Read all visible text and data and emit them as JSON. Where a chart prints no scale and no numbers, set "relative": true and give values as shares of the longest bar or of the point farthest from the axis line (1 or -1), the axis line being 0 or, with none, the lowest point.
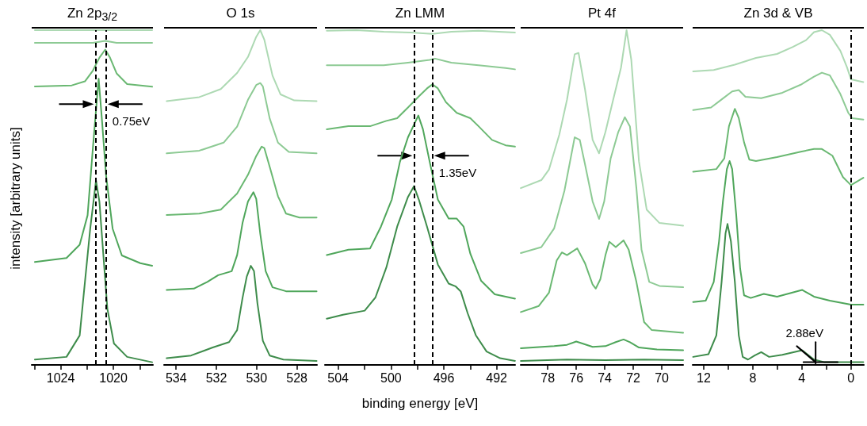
{
  "chart_data": [
    {
      "type": "line",
      "title": "Zn 2p$_{3/2}$",
      "ylabel": "intensity [arbitrary units]",
      "relative": true,
      "xlim": [
        1026.2,
        1017
      ],
      "xticks": [
        {
          "value": 1026,
          "label": null
        },
        1024,
        {
          "value": 1022,
          "label": null
        },
        1020,
        {
          "value": 1018,
          "label": null
        }
      ],
      "ref_lines": [
        {
          "axis": "x",
          "value": 1021.36,
          "line_style": "dashed"
        },
        {
          "axis": "x",
          "value": 1020.56,
          "line_style": "dashed"
        }
      ],
      "annotations": [
        {
          "text": "0.75eV",
          "x": 1020.56,
          "y": 0.779
        }
      ],
      "series": [
        {
          "color": "#3e8c4b",
          "x": [
            1025.96,
            1023.56,
            1022.56,
            1022.16,
            1021.76,
            1021.32,
            1021.06,
            1020.76,
            1020.46,
            1019.96,
            1018.96,
            1017.06
          ],
          "values": [
            0.016,
            0.024,
            0.088,
            0.248,
            0.407,
            0.551,
            0.487,
            0.327,
            0.168,
            0.064,
            0.024,
            0.008
          ]
        },
        {
          "color": "#4fa65b",
          "x": [
            1025.96,
            1023.56,
            1022.56,
            1021.96,
            1021.56,
            1021.12,
            1020.86,
            1020.56,
            1020.06,
            1019.36,
            1017.96,
            1017.06
          ],
          "values": [
            0.3075,
            0.3195,
            0.359,
            0.447,
            0.647,
            0.855,
            0.727,
            0.567,
            0.407,
            0.327,
            0.304,
            0.296
          ]
        },
        {
          "color": "#6ab872",
          "x": [
            1025.96,
            1023.16,
            1022.16,
            1021.56,
            1021.06,
            1020.62,
            1020.26,
            1019.76,
            1018.96,
            1017.06
          ],
          "values": [
            0.832,
            0.835,
            0.847,
            0.879,
            0.918,
            0.942,
            0.918,
            0.871,
            0.839,
            0.831
          ]
        },
        {
          "color": "#8dca94",
          "x": [
            1025.96,
            1021.56,
            1020.62,
            1019.76,
            1017.06
          ],
          "values": [
            0.962,
            0.962,
            0.968,
            0.962,
            0.962
          ]
        },
        {
          "color": "#add9b3",
          "x": [
            1025.96,
            1017.06
          ],
          "values": [
            1.0,
            1.0
          ]
        }
      ]
    },
    {
      "type": "line",
      "title": "O 1s",
      "relative": true,
      "xlim": [
        534.6,
        527
      ],
      "xticks": [
        534,
        532,
        530,
        528
      ],
      "series": [
        {
          "color": "#3e8c4b",
          "x": [
            534.47,
            533.26,
            532.18,
            531.37,
            530.97,
            530.7,
            530.49,
            530.29,
            530.13,
            529.96,
            529.69,
            529.35,
            528.67,
            527.02
          ],
          "values": [
            0.02,
            0.028,
            0.052,
            0.068,
            0.104,
            0.2,
            0.264,
            0.296,
            0.28,
            0.184,
            0.072,
            0.028,
            0.016,
            0.012
          ]
        },
        {
          "color": "#4fa65b",
          "x": [
            534.47,
            533.12,
            532.45,
            531.91,
            531.24,
            530.97,
            530.7,
            530.43,
            530.16,
            530.02,
            529.82,
            529.55,
            529.21,
            528.54,
            527.02
          ],
          "values": [
            0.224,
            0.228,
            0.248,
            0.268,
            0.28,
            0.328,
            0.424,
            0.488,
            0.516,
            0.496,
            0.392,
            0.28,
            0.232,
            0.22,
            0.22
          ]
        },
        {
          "color": "#6ab872",
          "x": [
            534.47,
            532.85,
            531.78,
            530.97,
            530.43,
            530.02,
            529.75,
            529.62,
            529.35,
            528.94,
            528.54,
            527.87,
            527.02
          ],
          "values": [
            0.448,
            0.452,
            0.464,
            0.512,
            0.568,
            0.624,
            0.652,
            0.648,
            0.592,
            0.504,
            0.452,
            0.44,
            0.44
          ]
        },
        {
          "color": "#8dca94",
          "x": [
            534.47,
            532.85,
            531.64,
            530.97,
            530.43,
            530.02,
            529.82,
            529.69,
            529.35,
            528.94,
            528.4,
            527.02
          ],
          "values": [
            0.632,
            0.64,
            0.664,
            0.712,
            0.792,
            0.836,
            0.842,
            0.832,
            0.736,
            0.664,
            0.636,
            0.632
          ]
        },
        {
          "color": "#add9b3",
          "x": [
            534.47,
            532.85,
            531.78,
            530.97,
            530.43,
            530.02,
            529.82,
            529.62,
            529.21,
            528.81,
            528.13,
            527.02
          ],
          "values": [
            0.788,
            0.8,
            0.824,
            0.872,
            0.92,
            0.98,
            1.0,
            0.972,
            0.864,
            0.808,
            0.79,
            0.788
          ]
        }
      ]
    },
    {
      "type": "line",
      "title": "Zn LMM",
      "xlabel": "binding energy [eV]",
      "relative": true,
      "xlim": [
        505,
        490.6
      ],
      "xticks": [
        504,
        {
          "value": 502,
          "label": null
        },
        500,
        {
          "value": 498,
          "label": null
        },
        496,
        {
          "value": 494,
          "label": null
        },
        492
      ],
      "ref_lines": [
        {
          "axis": "x",
          "value": 498.26,
          "line_style": "dashed"
        },
        {
          "axis": "x",
          "value": 496.86,
          "line_style": "dashed"
        }
      ],
      "annotations": [
        {
          "text": "1.35eV",
          "x": 496.86,
          "y": 0.625
        }
      ],
      "series": [
        {
          "color": "#3e8c4b",
          "x": [
            504.86,
            503.63,
            501.99,
            501.17,
            500.35,
            499.53,
            498.71,
            498.26,
            497.89,
            497.27,
            496.45,
            495.63,
            495.12,
            494.71,
            494.19,
            493.58,
            492.76,
            491.73,
            490.61
          ],
          "values": [
            0.138,
            0.15,
            0.162,
            0.202,
            0.291,
            0.413,
            0.502,
            0.534,
            0.494,
            0.413,
            0.3,
            0.243,
            0.235,
            0.219,
            0.154,
            0.089,
            0.04,
            0.02,
            0.012
          ]
        },
        {
          "color": "#4fa65b",
          "x": [
            504.86,
            503.22,
            501.58,
            500.76,
            499.94,
            499.32,
            498.71,
            497.93,
            497.58,
            497.07,
            496.45,
            495.63,
            495.02,
            494.5,
            493.99,
            493.17,
            492.14,
            490.61
          ],
          "values": [
            0.328,
            0.344,
            0.348,
            0.413,
            0.494,
            0.607,
            0.68,
            0.745,
            0.704,
            0.607,
            0.494,
            0.437,
            0.437,
            0.413,
            0.332,
            0.251,
            0.211,
            0.198
          ]
        },
        {
          "color": "#6ab872",
          "x": [
            504.86,
            503.22,
            501.58,
            500.35,
            499.53,
            498.71,
            497.89,
            497.27,
            496.86,
            496.45,
            495.84,
            495.02,
            493.99,
            493.37,
            492.35,
            491.32,
            490.61
          ],
          "values": [
            0.704,
            0.713,
            0.713,
            0.729,
            0.737,
            0.769,
            0.802,
            0.826,
            0.838,
            0.826,
            0.785,
            0.753,
            0.737,
            0.713,
            0.672,
            0.656,
            0.652
          ]
        },
        {
          "color": "#8dca94",
          "x": [
            504.86,
            502.61,
            500.55,
            498.71,
            497.07,
            496.66,
            495.43,
            493.37,
            491.32,
            490.61
          ],
          "values": [
            0.895,
            0.895,
            0.895,
            0.903,
            0.911,
            0.915,
            0.903,
            0.895,
            0.887,
            0.883
          ]
        },
        {
          "color": "#add9b3",
          "x": [
            504.86,
            502.61,
            500.55,
            498.5,
            496.86,
            495.43,
            493.37,
            490.61
          ],
          "values": [
            0.998,
            1.0,
            0.995,
            0.993,
            0.989,
            0.995,
            0.998,
            0.993
          ]
        }
      ]
    },
    {
      "type": "line",
      "title": "Pt 4f",
      "relative": true,
      "xlim": [
        79.9,
        68.5
      ],
      "xticks": [
        78,
        76,
        74,
        72,
        70
      ],
      "series": [
        {
          "color": "#3e8c4b",
          "x": [
            79.89,
            76.65,
            73.95,
            71.24,
            68.5
          ],
          "values": [
            0.012,
            0.016,
            0.014,
            0.016,
            0.014
          ]
        },
        {
          "color": "#4fa65b",
          "x": [
            79.89,
            77.55,
            76.65,
            76.0,
            75.57,
            74.85,
            73.95,
            73.23,
            72.68,
            72.23,
            71.6,
            70.34,
            68.5
          ],
          "values": [
            0.05,
            0.056,
            0.06,
            0.07,
            0.064,
            0.054,
            0.056,
            0.068,
            0.076,
            0.068,
            0.052,
            0.046,
            0.044
          ]
        },
        {
          "color": "#6ab872",
          "x": [
            79.89,
            78.63,
            77.91,
            77.37,
            77.01,
            76.65,
            75.93,
            75.39,
            74.85,
            74.63,
            74.31,
            73.95,
            73.68,
            73.23,
            72.68,
            72.32,
            71.78,
            71.24,
            70.7,
            68.5
          ],
          "values": [
            0.158,
            0.176,
            0.216,
            0.312,
            0.336,
            0.328,
            0.348,
            0.304,
            0.24,
            0.228,
            0.256,
            0.328,
            0.368,
            0.352,
            0.372,
            0.344,
            0.248,
            0.128,
            0.104,
            0.096
          ]
        },
        {
          "color": "#8dca94",
          "x": [
            79.89,
            78.45,
            77.55,
            76.83,
            76.11,
            75.75,
            75.39,
            74.85,
            74.4,
            74.04,
            73.59,
            73.05,
            72.59,
            72.23,
            71.78,
            71.42,
            70.88,
            70.16,
            68.5
          ],
          "values": [
            0.334,
            0.352,
            0.408,
            0.52,
            0.68,
            0.672,
            0.6,
            0.488,
            0.436,
            0.488,
            0.616,
            0.696,
            0.74,
            0.712,
            0.528,
            0.344,
            0.248,
            0.236,
            0.232
          ]
        },
        {
          "color": "#add9b3",
          "x": [
            79.89,
            78.45,
            77.91,
            77.19,
            76.65,
            76.11,
            75.84,
            75.39,
            74.85,
            74.4,
            73.95,
            73.41,
            72.86,
            72.47,
            72.14,
            71.6,
            71.06,
            70.16,
            68.5
          ],
          "values": [
            0.528,
            0.552,
            0.584,
            0.688,
            0.792,
            0.928,
            0.932,
            0.824,
            0.672,
            0.632,
            0.696,
            0.792,
            0.888,
            1.0,
            0.912,
            0.608,
            0.464,
            0.424,
            0.416
          ]
        }
      ]
    },
    {
      "type": "line",
      "title": "Zn 3d & VB",
      "relative": true,
      "xlim": [
        12.9,
        -1.05
      ],
      "xticks": [
        12,
        {
          "value": 10,
          "label": null
        },
        8,
        {
          "value": 6,
          "label": null
        },
        4,
        {
          "value": 2,
          "label": null
        },
        0
      ],
      "ref_lines": [
        {
          "axis": "x",
          "value": 0,
          "line_style": "dashed"
        }
      ],
      "annotations": [
        {
          "text": "2.88eV",
          "x": 2.88,
          "y": 0.008
        }
      ],
      "series": [
        {
          "color": "#3e8c4b",
          "x": [
            12.86,
            11.61,
            10.97,
            10.54,
            10.22,
            10.06,
            9.78,
            9.46,
            9.14,
            8.82,
            8.39,
            7.85,
            7.31,
            6.67,
            5.59,
            3.98,
            3.01,
            2.15,
            -1.01
          ],
          "values": [
            0.024,
            0.032,
            0.088,
            0.248,
            0.393,
            0.421,
            0.369,
            0.248,
            0.088,
            0.024,
            0.016,
            0.028,
            0.038,
            0.024,
            0.03,
            0.044,
            0.016,
            0.008,
            0.008
          ]
        },
        {
          "color": "#4fa65b",
          "x": [
            12.86,
            11.83,
            11.18,
            10.75,
            10.43,
            10.11,
            9.89,
            9.68,
            9.35,
            9.03,
            8.71,
            8.17,
            7.1,
            6.02,
            3.98,
            3.01,
            1.72,
            0.0,
            -1.01
          ],
          "values": [
            0.188,
            0.192,
            0.248,
            0.369,
            0.489,
            0.585,
            0.609,
            0.585,
            0.449,
            0.288,
            0.208,
            0.2,
            0.212,
            0.204,
            0.224,
            0.204,
            0.192,
            0.18,
            0.18
          ]
        },
        {
          "color": "#6ab872",
          "x": [
            12.86,
            10.97,
            10.32,
            9.94,
            9.46,
            9.14,
            8.71,
            8.28,
            7.74,
            6.02,
            4.09,
            3.01,
            2.37,
            1.51,
            0.65,
            0.0,
            -1.01
          ],
          "values": [
            0.577,
            0.585,
            0.617,
            0.713,
            0.765,
            0.737,
            0.665,
            0.613,
            0.609,
            0.621,
            0.637,
            0.645,
            0.645,
            0.625,
            0.561,
            0.537,
            0.559
          ]
        },
        {
          "color": "#8dca94",
          "x": [
            12.86,
            11.4,
            10.54,
            9.68,
            9.14,
            8.6,
            7.31,
            5.59,
            4.09,
            3.01,
            2.37,
            1.72,
            0.86,
            0.22,
            -0.11,
            -1.01
          ],
          "values": [
            0.761,
            0.769,
            0.793,
            0.817,
            0.821,
            0.801,
            0.797,
            0.813,
            0.837,
            0.861,
            0.873,
            0.865,
            0.809,
            0.753,
            0.737,
            0.733
          ]
        },
        {
          "color": "#add9b3",
          "x": [
            12.86,
            11.18,
            9.46,
            7.74,
            6.02,
            4.73,
            3.66,
            3.01,
            2.37,
            1.72,
            0.86,
            0.32,
            0.0,
            -1.01
          ],
          "values": [
            0.877,
            0.881,
            0.897,
            0.917,
            0.929,
            0.95,
            0.97,
            0.994,
            1.0,
            0.986,
            0.938,
            0.889,
            0.853,
            0.845
          ]
        },
        {
          "type": "line",
          "color": "#000000",
          "x": [
            4.41,
            2.88
          ],
          "values": [
            0.056,
            0.008
          ]
        },
        {
          "type": "line",
          "color": "#000000",
          "x": [
            3.87,
            1.08
          ],
          "values": [
            0.008,
            0.008
          ]
        },
        {
          "type": "line",
          "color": "#000000",
          "x": [
            2.88,
            2.88
          ],
          "values": [
            0.068,
            0.004
          ]
        }
      ]
    }
  ]
}
